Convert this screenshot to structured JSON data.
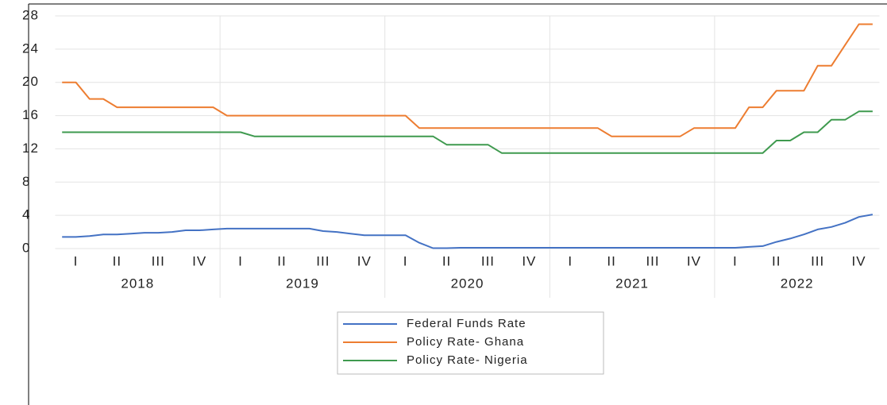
{
  "chart_data": {
    "type": "line",
    "quarters": [
      "I",
      "II",
      "III",
      "IV",
      "I",
      "II",
      "III",
      "IV",
      "I",
      "II",
      "III",
      "IV",
      "I",
      "II",
      "III",
      "IV",
      "I",
      "II",
      "III",
      "IV"
    ],
    "years": [
      "2018",
      "2019",
      "2020",
      "2021",
      "2022"
    ],
    "ylim": [
      0,
      28
    ],
    "yticks": [
      0,
      4,
      8,
      12,
      16,
      20,
      24,
      28
    ],
    "grid": true,
    "legend": "bottom",
    "series": [
      {
        "name": "Federal Funds Rate",
        "color": "#4472c4",
        "values": [
          1.4,
          1.4,
          1.5,
          1.7,
          1.7,
          1.8,
          1.9,
          1.9,
          2.0,
          2.2,
          2.2,
          2.3,
          2.4,
          2.4,
          2.4,
          2.4,
          2.4,
          2.4,
          2.4,
          2.1,
          2.0,
          1.8,
          1.6,
          1.6,
          1.6,
          1.6,
          0.7,
          0.05,
          0.05,
          0.1,
          0.1,
          0.1,
          0.1,
          0.1,
          0.1,
          0.1,
          0.1,
          0.1,
          0.1,
          0.1,
          0.1,
          0.1,
          0.1,
          0.1,
          0.1,
          0.1,
          0.1,
          0.1,
          0.1,
          0.1,
          0.2,
          0.3,
          0.8,
          1.2,
          1.7,
          2.3,
          2.6,
          3.1,
          3.8,
          4.1
        ]
      },
      {
        "name": "Policy Rate- Ghana",
        "color": "#ed7d31",
        "values": [
          20,
          20,
          18,
          18,
          17,
          17,
          17,
          17,
          17,
          17,
          17,
          17,
          16,
          16,
          16,
          16,
          16,
          16,
          16,
          16,
          16,
          16,
          16,
          16,
          16,
          16,
          14.5,
          14.5,
          14.5,
          14.5,
          14.5,
          14.5,
          14.5,
          14.5,
          14.5,
          14.5,
          14.5,
          14.5,
          14.5,
          14.5,
          13.5,
          13.5,
          13.5,
          13.5,
          13.5,
          13.5,
          14.5,
          14.5,
          14.5,
          14.5,
          17,
          17,
          19,
          19,
          19,
          22,
          22,
          24.5,
          27,
          27
        ]
      },
      {
        "name": "Policy Rate- Nigeria",
        "color": "#3f9a4f",
        "values": [
          14,
          14,
          14,
          14,
          14,
          14,
          14,
          14,
          14,
          14,
          14,
          14,
          14,
          14,
          13.5,
          13.5,
          13.5,
          13.5,
          13.5,
          13.5,
          13.5,
          13.5,
          13.5,
          13.5,
          13.5,
          13.5,
          13.5,
          13.5,
          12.5,
          12.5,
          12.5,
          12.5,
          11.5,
          11.5,
          11.5,
          11.5,
          11.5,
          11.5,
          11.5,
          11.5,
          11.5,
          11.5,
          11.5,
          11.5,
          11.5,
          11.5,
          11.5,
          11.5,
          11.5,
          11.5,
          11.5,
          11.5,
          13,
          13,
          14,
          14,
          15.5,
          15.5,
          16.5,
          16.5
        ]
      }
    ]
  }
}
